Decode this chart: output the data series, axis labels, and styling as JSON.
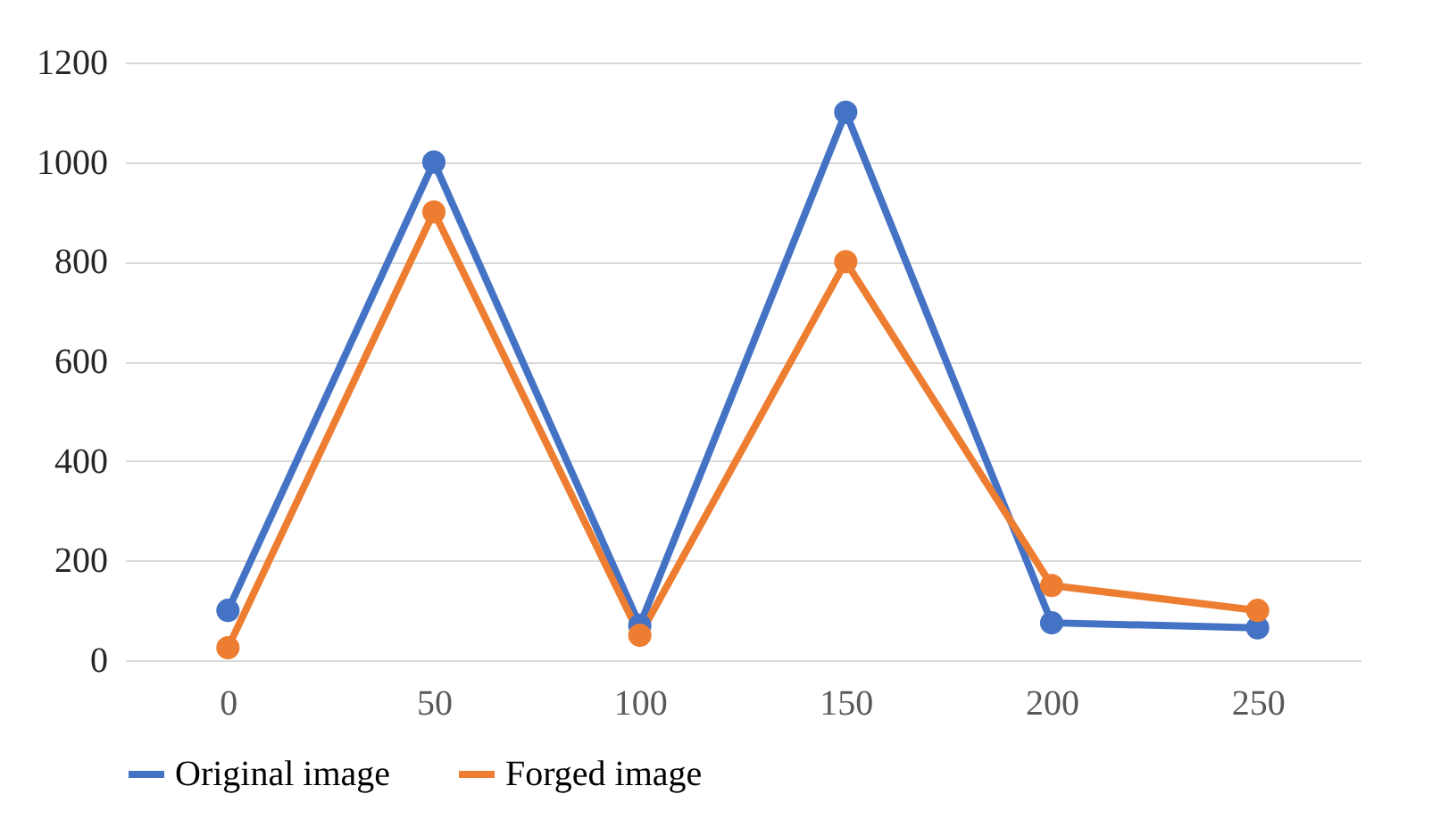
{
  "chart_data": {
    "type": "line",
    "categories": [
      "0",
      "50",
      "100",
      "150",
      "200",
      "250"
    ],
    "series": [
      {
        "name": "Original image",
        "color": "#4472c4",
        "values": [
          100,
          1000,
          70,
          1100,
          75,
          65
        ]
      },
      {
        "name": "Forged image",
        "color": "#ed7d31",
        "values": [
          25,
          900,
          50,
          800,
          150,
          100
        ]
      }
    ],
    "ylim": [
      0,
      1200
    ],
    "yticks": [
      0,
      200,
      400,
      600,
      800,
      1000,
      1200
    ],
    "grid": "y",
    "legend": "bottom",
    "marker": "circle",
    "line_style": "solid"
  }
}
